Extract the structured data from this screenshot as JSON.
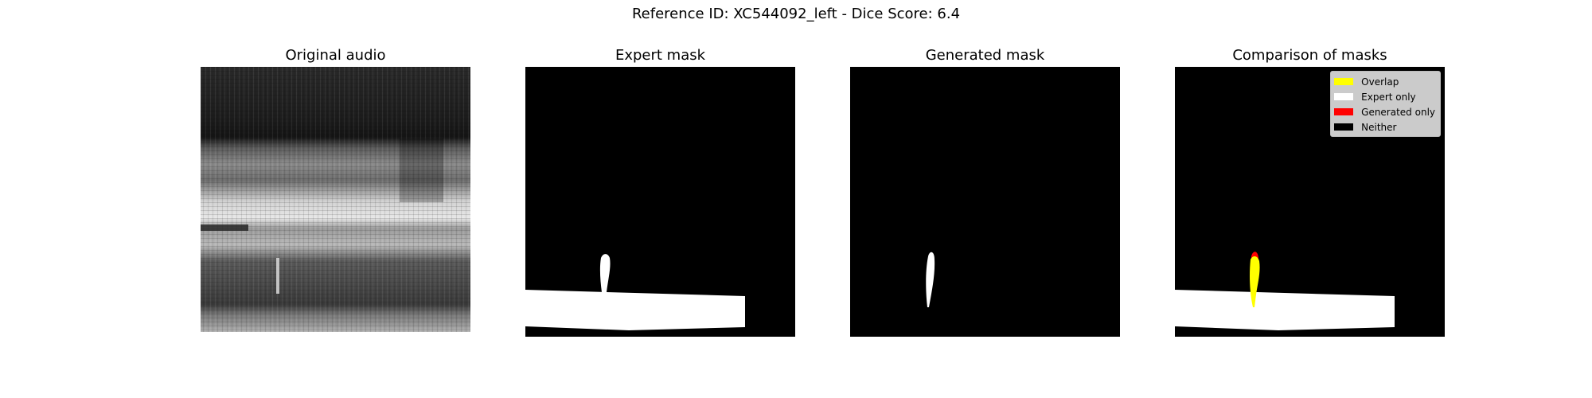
{
  "figure": {
    "title": "Reference ID: XC544092_left - Dice Score: 6.4"
  },
  "panels": [
    {
      "title": "Original audio"
    },
    {
      "title": "Expert mask"
    },
    {
      "title": "Generated mask"
    },
    {
      "title": "Comparison of masks"
    }
  ],
  "legend": {
    "items": [
      {
        "label": "Overlap",
        "color": "#ffff00"
      },
      {
        "label": "Expert only",
        "color": "#ffffff"
      },
      {
        "label": "Generated only",
        "color": "#ff0000"
      },
      {
        "label": "Neither",
        "color": "#000000"
      }
    ]
  }
}
